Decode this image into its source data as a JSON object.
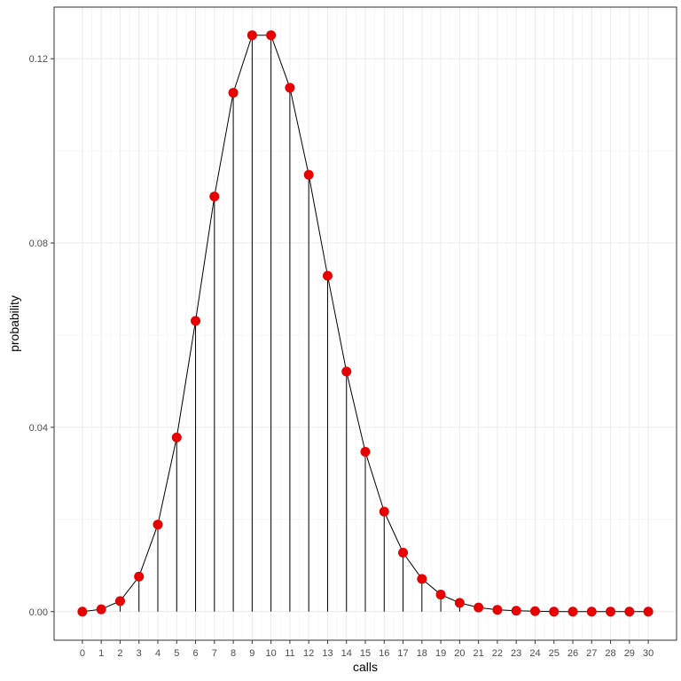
{
  "chart_data": {
    "type": "scatter",
    "style": "lollipop with connecting line",
    "xlabel": "calls",
    "ylabel": "probability",
    "xlim": [
      -1.5,
      31.5
    ],
    "ylim": [
      -0.0062,
      0.1312
    ],
    "x_ticks": [
      0,
      1,
      2,
      3,
      4,
      5,
      6,
      7,
      8,
      9,
      10,
      11,
      12,
      13,
      14,
      15,
      16,
      17,
      18,
      19,
      20,
      21,
      22,
      23,
      24,
      25,
      26,
      27,
      28,
      29,
      30
    ],
    "y_ticks": [
      0.0,
      0.04,
      0.08,
      0.12
    ],
    "y_tick_labels": [
      "0.00",
      "0.04",
      "0.08",
      "0.12"
    ],
    "grid": true,
    "theme": "bw",
    "point_color": "#e60000",
    "line_color": "#000000",
    "x": [
      0,
      1,
      2,
      3,
      4,
      5,
      6,
      7,
      8,
      9,
      10,
      11,
      12,
      13,
      14,
      15,
      16,
      17,
      18,
      19,
      20,
      21,
      22,
      23,
      24,
      25,
      26,
      27,
      28,
      29,
      30
    ],
    "y": [
      0.0,
      0.0005,
      0.0023,
      0.0076,
      0.0189,
      0.0378,
      0.0631,
      0.0901,
      0.1126,
      0.1251,
      0.1251,
      0.1137,
      0.0948,
      0.0729,
      0.0521,
      0.0347,
      0.0217,
      0.0128,
      0.0071,
      0.0037,
      0.0019,
      0.0009,
      0.0004,
      0.0002,
      0.0001,
      0.0,
      0.0,
      0.0,
      0.0,
      0.0,
      0.0
    ]
  }
}
